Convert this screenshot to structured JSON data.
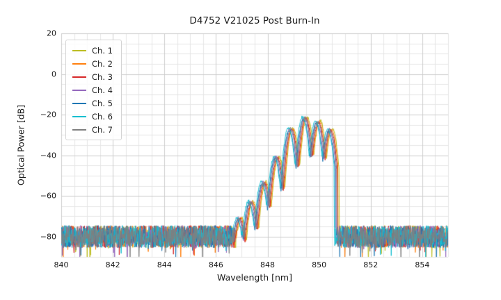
{
  "figure": {
    "background": "#ffffff",
    "text_color": "#1a1a1a"
  },
  "chart_data": {
    "type": "line",
    "title": "D4752 V21025 Post Burn-In",
    "xlabel": "Wavelength [nm]",
    "ylabel": "Optical Power [dB]",
    "xlim": [
      840,
      855
    ],
    "ylim": [
      -90,
      20
    ],
    "xticks": [
      {
        "value": 840,
        "label": "840"
      },
      {
        "value": 842,
        "label": "842"
      },
      {
        "value": 844,
        "label": "844"
      },
      {
        "value": 846,
        "label": "846"
      },
      {
        "value": 848,
        "label": "848"
      },
      {
        "value": 850,
        "label": "850"
      },
      {
        "value": 852,
        "label": "852"
      },
      {
        "value": 854,
        "label": "854"
      }
    ],
    "yticks": [
      {
        "value": 20,
        "label": "20"
      },
      {
        "value": 0,
        "label": "0"
      },
      {
        "value": -20,
        "label": "−20"
      },
      {
        "value": -40,
        "label": "−40"
      },
      {
        "value": -60,
        "label": "−60"
      },
      {
        "value": -80,
        "label": "−80"
      }
    ],
    "grid": {
      "major": true,
      "minor": true,
      "major_color": "#cccccc",
      "minor_color": "#e6e6e6",
      "minor_x_step_nm": 0.5,
      "minor_y_step_db": 5
    },
    "legend": {
      "position": "upper left"
    },
    "series": [
      {
        "name": "Ch. 1",
        "color": "#bcbd22",
        "wavelength_offset_nm": 0.09,
        "peak_offset_db": 0.5
      },
      {
        "name": "Ch. 2",
        "color": "#ff7f0e",
        "wavelength_offset_nm": 0.06,
        "peak_offset_db": 0.0
      },
      {
        "name": "Ch. 3",
        "color": "#d62728",
        "wavelength_offset_nm": 0.03,
        "peak_offset_db": -0.3
      },
      {
        "name": "Ch. 4",
        "color": "#9467bd",
        "wavelength_offset_nm": -0.03,
        "peak_offset_db": 0.2
      },
      {
        "name": "Ch. 5",
        "color": "#1f77b4",
        "wavelength_offset_nm": -0.06,
        "peak_offset_db": -0.8
      },
      {
        "name": "Ch. 6",
        "color": "#17becf",
        "wavelength_offset_nm": -0.09,
        "peak_offset_db": 0.4
      },
      {
        "name": "Ch. 7",
        "color": "#7f7f7f",
        "wavelength_offset_nm": 0.0,
        "peak_offset_db": 0.0
      }
    ],
    "spectrum_model": {
      "description": "Seven overlaid multimode laser spectra on a broadband noise floor",
      "noise_floor_db": -80,
      "noise_peak_to_peak_db": 11,
      "signal_range_nm": [
        846.62,
        850.68
      ],
      "mode_lobes": [
        {
          "center_nm": 846.9,
          "peak_db": -71
        },
        {
          "center_nm": 847.35,
          "peak_db": -63
        },
        {
          "center_nm": 847.85,
          "peak_db": -53.5
        },
        {
          "center_nm": 848.35,
          "peak_db": -41
        },
        {
          "center_nm": 848.9,
          "peak_db": -27
        },
        {
          "center_nm": 849.45,
          "peak_db": -21.5
        },
        {
          "center_nm": 849.95,
          "peak_db": -23.5
        },
        {
          "center_nm": 850.42,
          "peak_db": -27.5
        }
      ],
      "lobe_curvature_db_per_nm2": 290,
      "sample_step_nm": 0.015
    }
  }
}
